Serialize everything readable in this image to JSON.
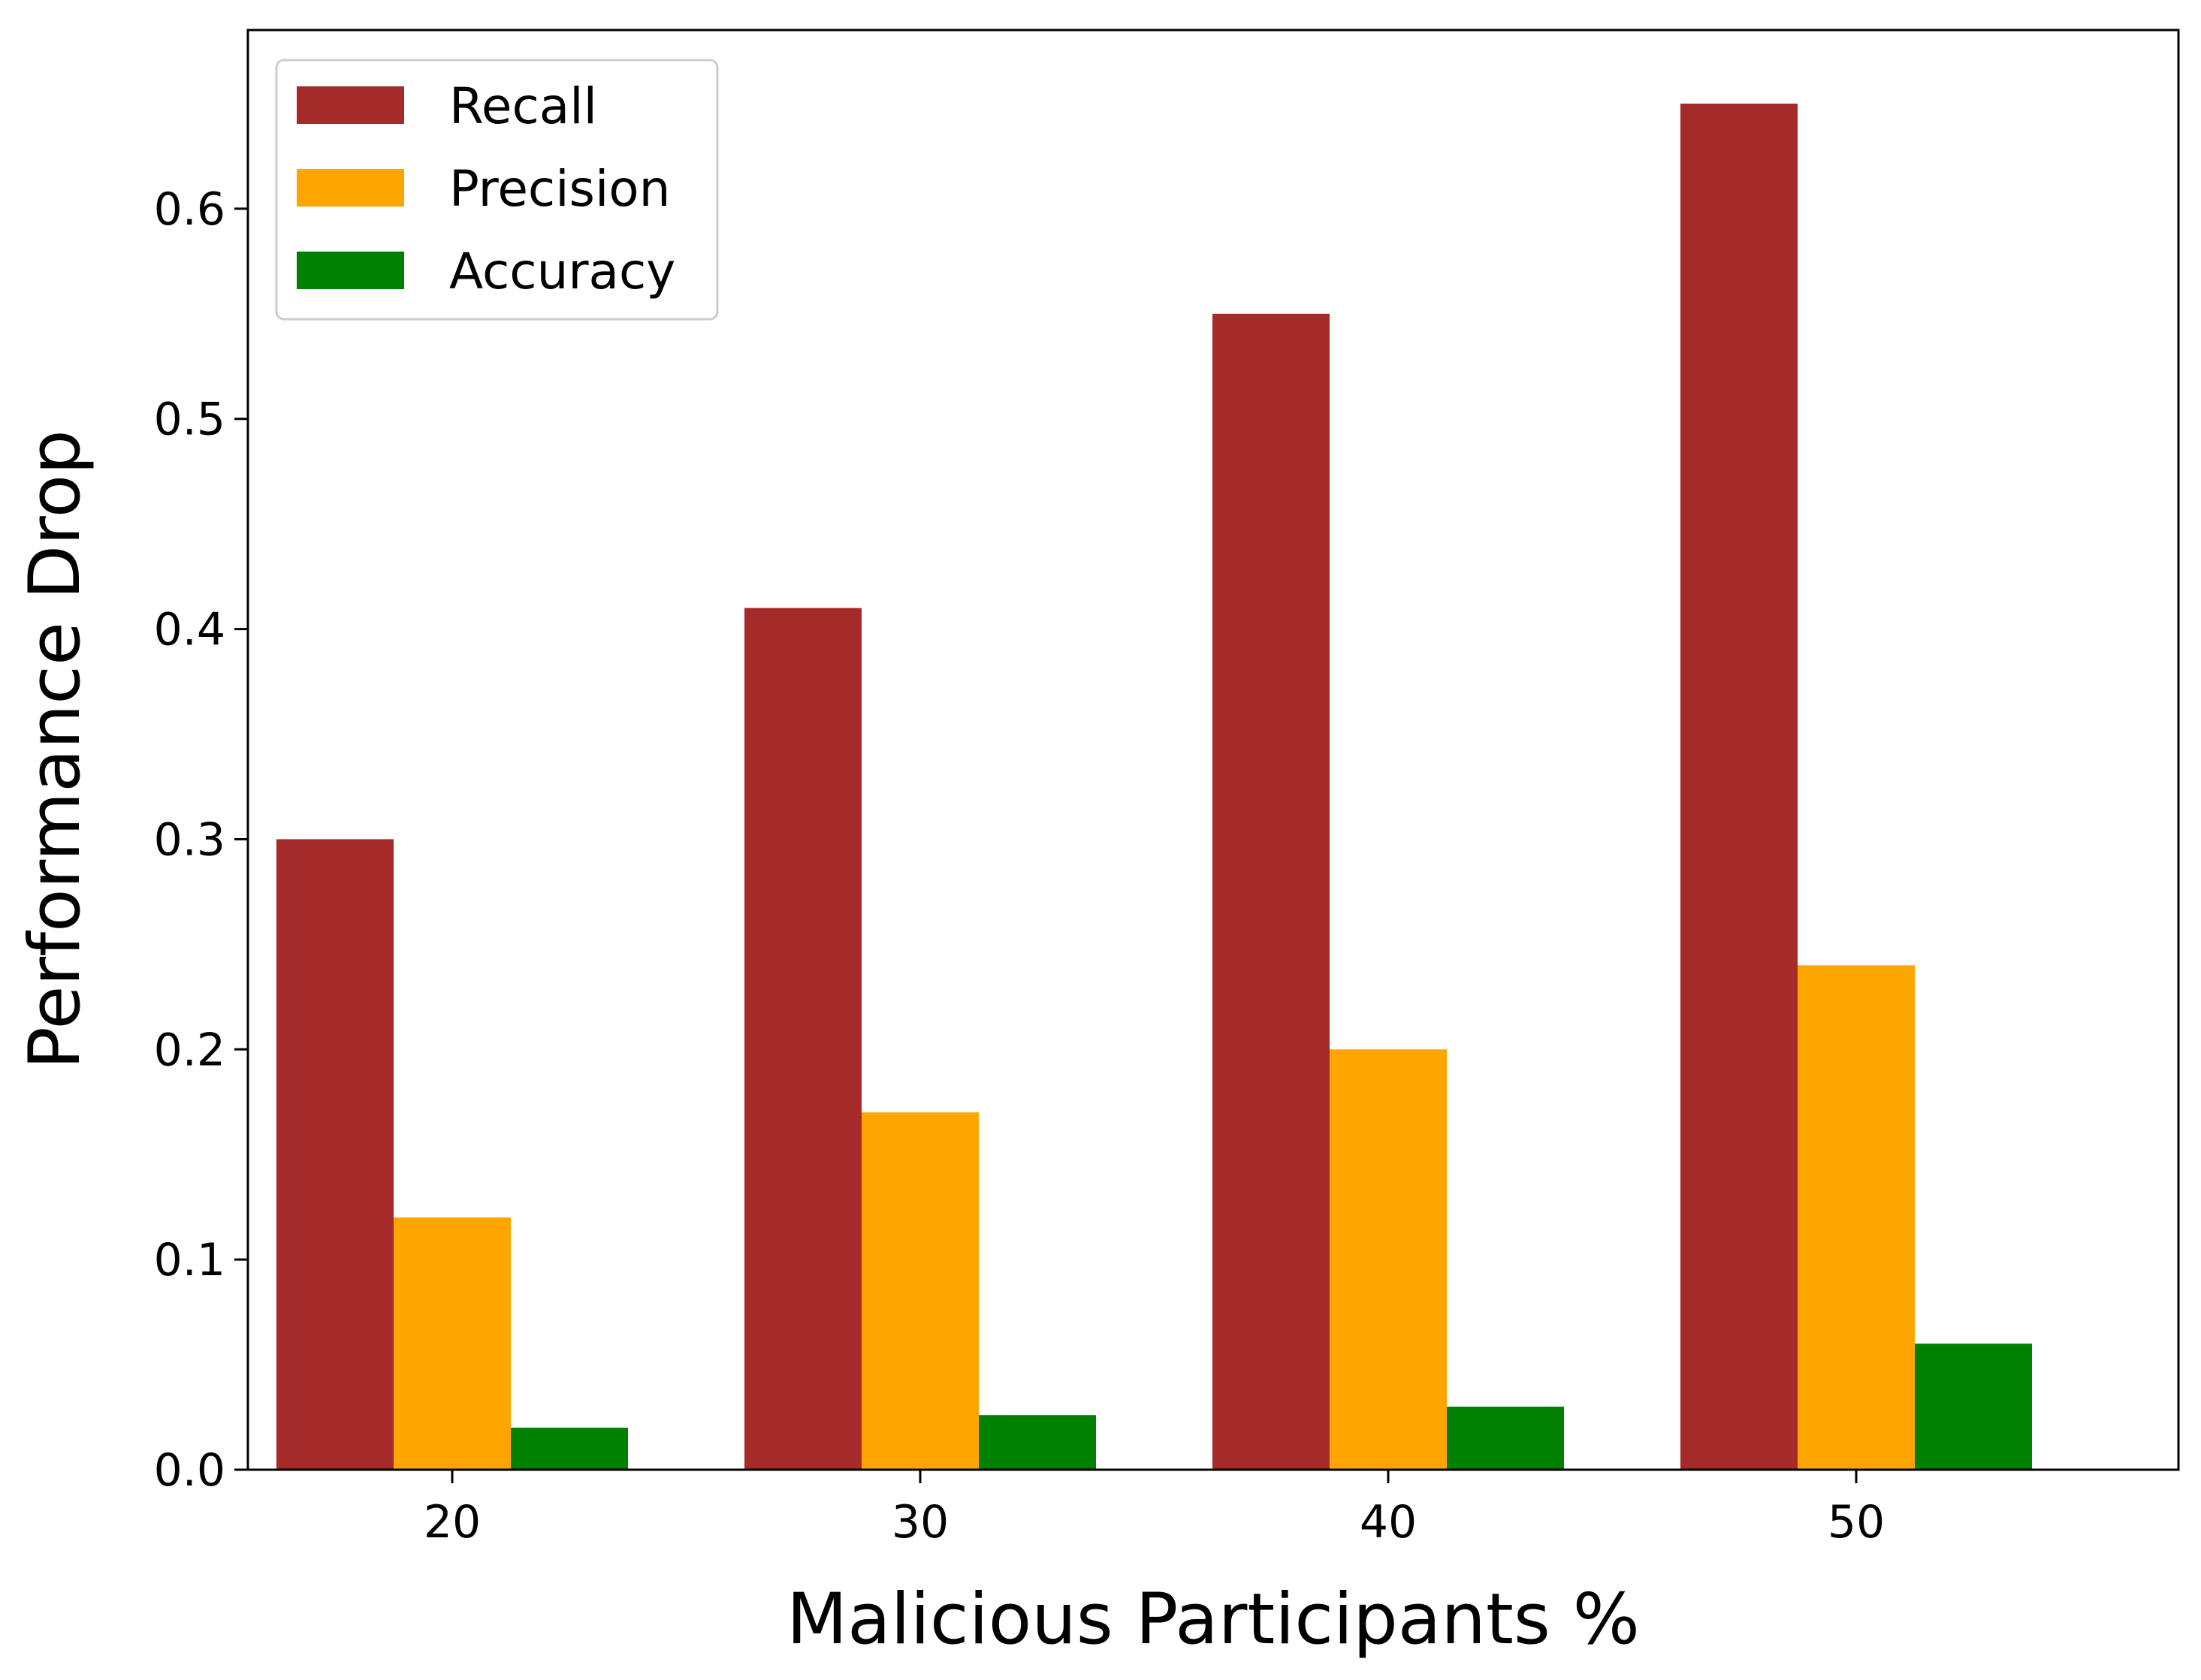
{
  "chart_data": {
    "type": "bar",
    "title": "",
    "xlabel": "Malicious Participants %",
    "ylabel": "Performance Drop",
    "categories": [
      "20",
      "30",
      "40",
      "50"
    ],
    "series": [
      {
        "name": "Recall",
        "color": "#a52a2a",
        "values": [
          0.3,
          0.41,
          0.55,
          0.65
        ]
      },
      {
        "name": "Precision",
        "color": "#ffa500",
        "values": [
          0.12,
          0.17,
          0.2,
          0.24
        ]
      },
      {
        "name": "Accuracy",
        "color": "#008000",
        "values": [
          0.02,
          0.026,
          0.03,
          0.06
        ]
      }
    ],
    "ylim": [
      0,
      0.685
    ],
    "yticks": [
      "0.0",
      "0.1",
      "0.2",
      "0.3",
      "0.4",
      "0.5",
      "0.6"
    ],
    "legend_position": "top-left",
    "grid": false
  }
}
